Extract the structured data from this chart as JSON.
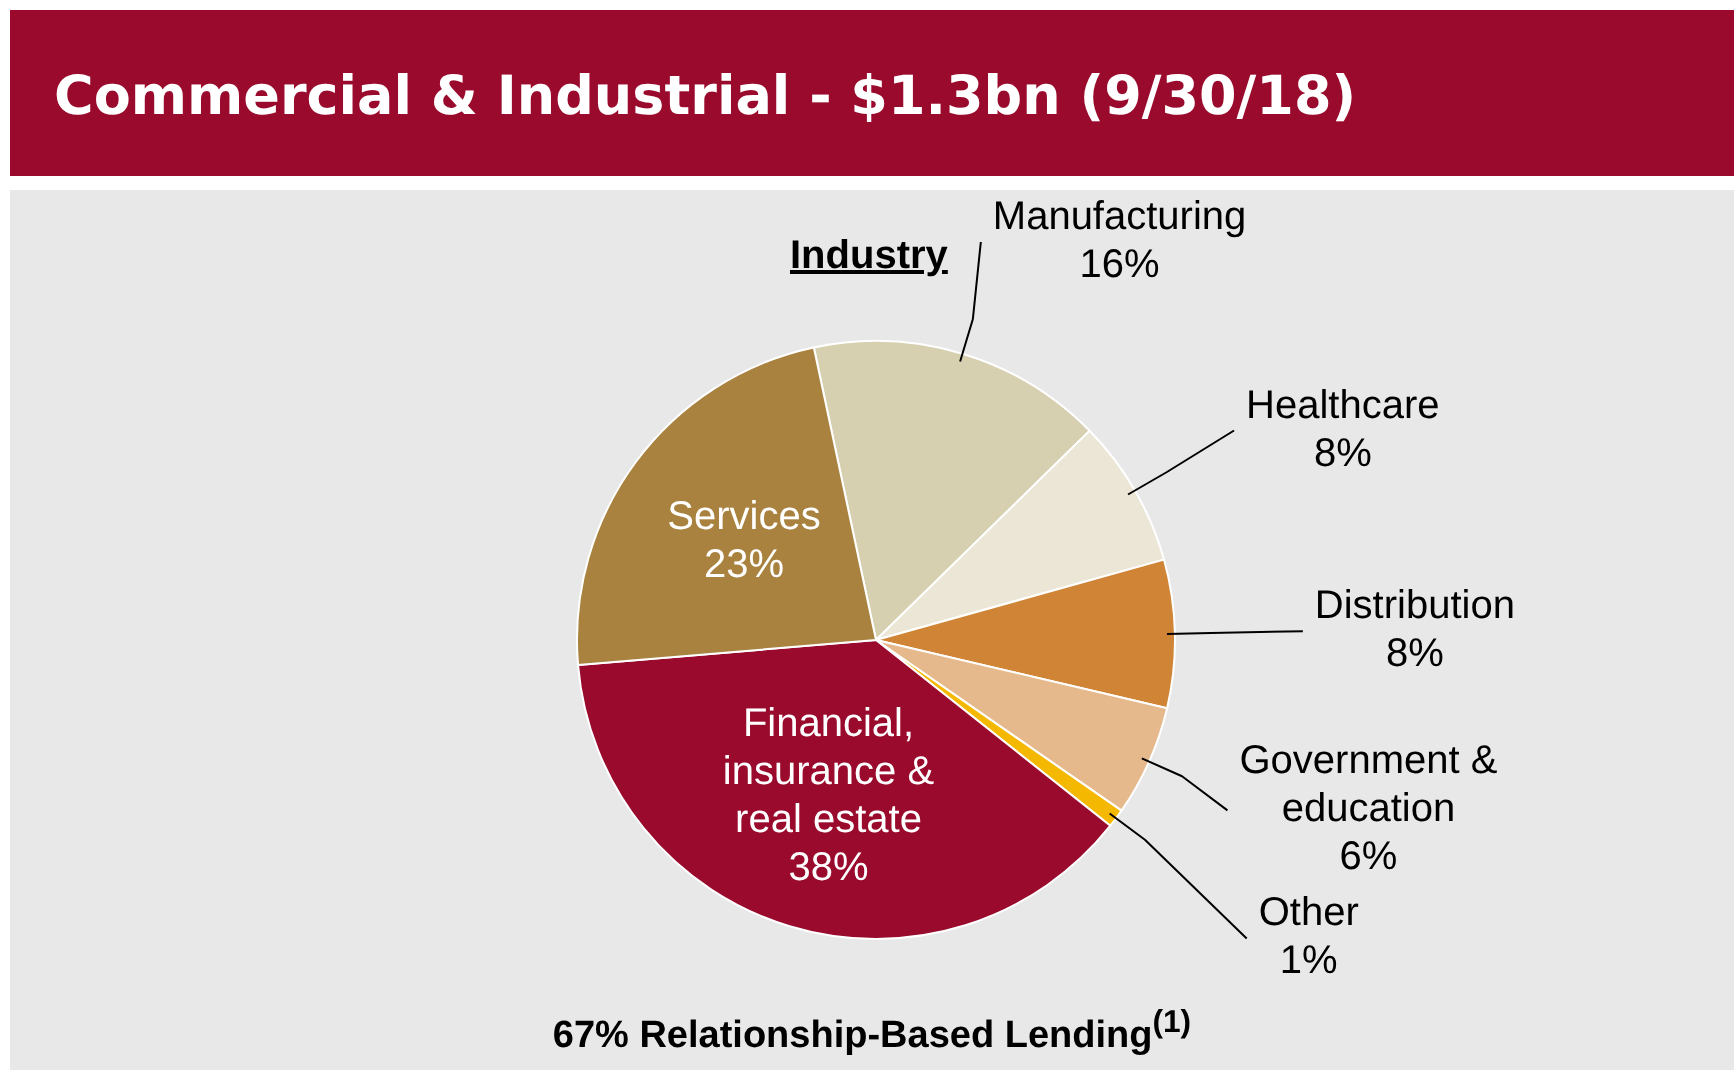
{
  "chart_data": {
    "type": "pie",
    "title": "Commercial & Industrial - $1.3bn (9/30/18)",
    "subtitle": "Industry",
    "categories": [
      "Manufacturing",
      "Healthcare",
      "Distribution",
      "Government & education",
      "Other",
      "Financial, insurance & real estate",
      "Services"
    ],
    "values": [
      16,
      8,
      8,
      6,
      1,
      38,
      23
    ],
    "colors": [
      "#d6cfb0",
      "#ebe6d5",
      "#d08436",
      "#e6b98d",
      "#f5b800",
      "#990a2c",
      "#a8823e"
    ],
    "value_labels": [
      "16%",
      "8%",
      "8%",
      "6%",
      "1%",
      "38%",
      "23%"
    ],
    "annotations": [
      "67% Relationship-Based Lending$^{(1)}$"
    ]
  }
}
